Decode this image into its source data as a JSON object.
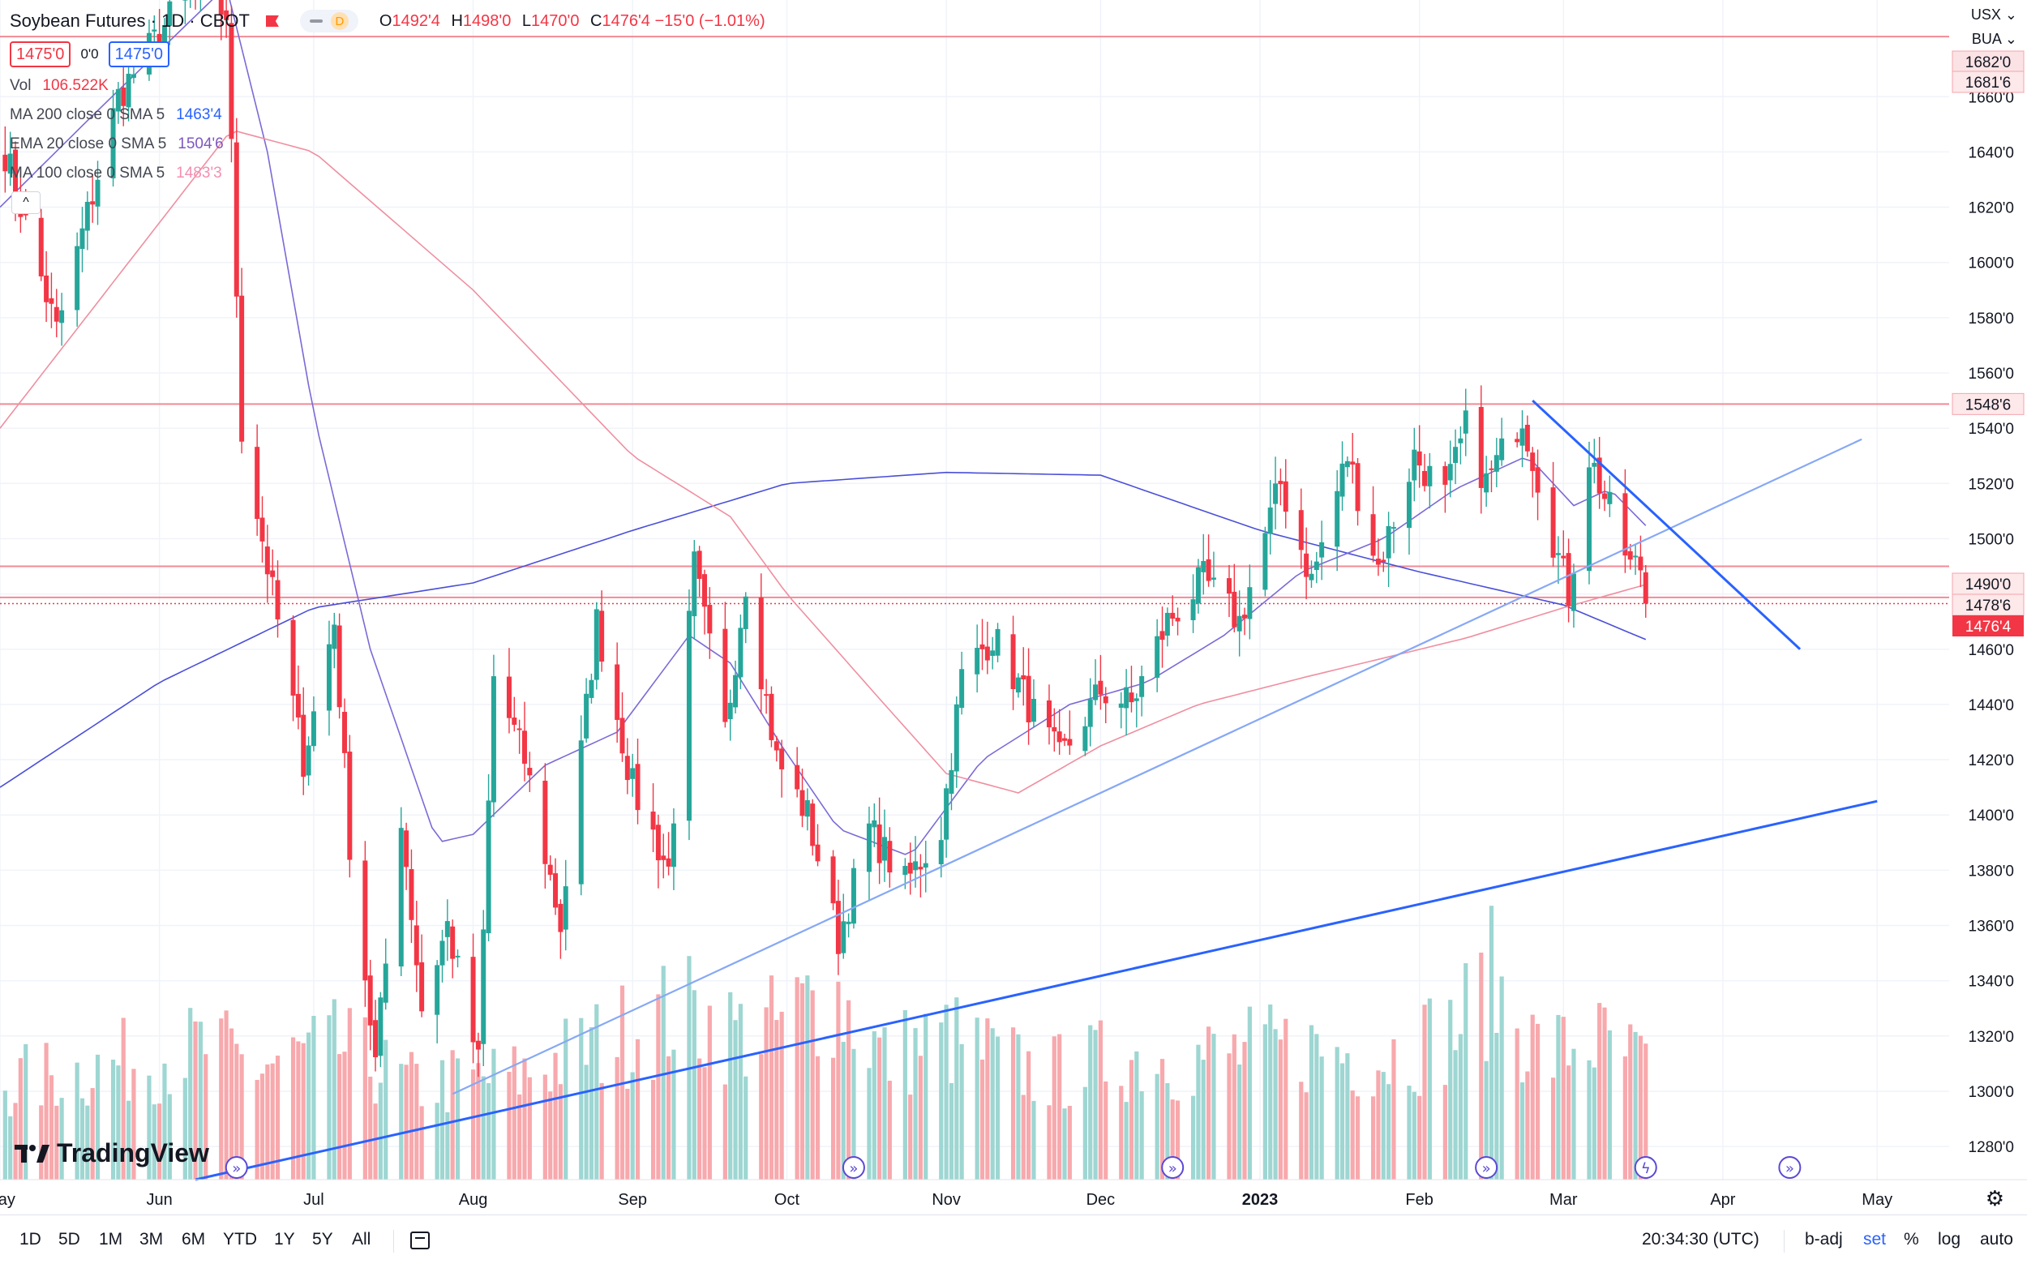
{
  "header": {
    "symbol": "Soybean Futures · 1D · CBOT",
    "pill_label": "D",
    "ohlc": [
      {
        "k": "O",
        "v": "1492'4"
      },
      {
        "k": "H",
        "v": "1498'0"
      },
      {
        "k": "L",
        "v": "1470'0"
      },
      {
        "k": "C",
        "v": "1476'4 −15'0 (−1.01%)"
      }
    ],
    "sell_price": "1475'0",
    "spread": "0'0",
    "buy_price": "1475'0",
    "currency": "USX",
    "unit": "BUA"
  },
  "legend": [
    {
      "name": "Vol",
      "value": "106.522K",
      "color": "#f23645"
    },
    {
      "name": "MA 200 close 0 SMA 5",
      "value": "1463'4",
      "color": "#2962ff"
    },
    {
      "name": "EMA 20 close 0 SMA 5",
      "value": "1504'6",
      "color": "#7e57c2"
    },
    {
      "name": "MA 100 close 0 SMA 5",
      "value": "1483'3",
      "color": "#f48fb1"
    }
  ],
  "collapse_glyph": "^",
  "logo": "TradingView",
  "colors": {
    "up": "#26a69a",
    "down": "#f23645",
    "vol_up": "#9ed6d2",
    "vol_down": "#f7a9ad",
    "ma200": "#4a4fd8",
    "ema20": "#7b6ad6",
    "ma100": "#ef8fa0",
    "hline": "#f28b95",
    "trend_light": "#86a8f5",
    "trend_dark": "#2962ff",
    "price_label": "#f23645"
  },
  "bottom_bar": {
    "timeframes": [
      "1D",
      "5D",
      "1M",
      "3M",
      "6M",
      "YTD",
      "1Y",
      "5Y",
      "All"
    ],
    "clock": "20:34:30 (UTC)",
    "toggles": [
      "b-adj",
      "set",
      "%",
      "log",
      "auto"
    ],
    "active_toggle": "set"
  },
  "chart_data": {
    "type": "candlestick",
    "title": "Soybean Futures · 1D · CBOT",
    "y_axis": {
      "ticks": [
        1280,
        1300,
        1320,
        1340,
        1360,
        1380,
        1400,
        1420,
        1440,
        1460,
        1480,
        1500,
        1520,
        1540,
        1560,
        1580,
        1600,
        1620,
        1640,
        1660
      ],
      "tick_labels": [
        "1280'0",
        "1300'0",
        "1320'0",
        "1340'0",
        "1360'0",
        "1380'0",
        "1400'0",
        "1420'0",
        "1440'0",
        "1460'0",
        "1480'0",
        "1500'0",
        "1520'0",
        "1540'0",
        "1560'0",
        "1580'0",
        "1600'0",
        "1620'0",
        "1640'0",
        "1660'0"
      ],
      "range": [
        1268,
        1695
      ],
      "side": "right"
    },
    "x_axis": {
      "labels": [
        "May",
        "Jun",
        "Jul",
        "Aug",
        "Sep",
        "Oct",
        "Nov",
        "Dec",
        "2023",
        "Feb",
        "Mar",
        "Apr",
        "May"
      ],
      "label_dates": [
        "2022-05-01",
        "2022-06-01",
        "2022-07-01",
        "2022-08-01",
        "2022-09-01",
        "2022-10-01",
        "2022-11-01",
        "2022-12-01",
        "2023-01-01",
        "2023-02-01",
        "2023-03-01",
        "2023-04-01",
        "2023-05-01"
      ],
      "range": [
        "2022-05-01",
        "2023-05-15"
      ]
    },
    "price_labels": [
      {
        "value": 1682,
        "text": "1682'0",
        "style": "faint"
      },
      {
        "value": 1681.75,
        "text": "1681'6",
        "style": "line"
      },
      {
        "value": 1548.75,
        "text": "1548'6",
        "style": "line"
      },
      {
        "value": 1490,
        "text": "1490'0",
        "style": "line"
      },
      {
        "value": 1478.75,
        "text": "1478'6",
        "style": "line"
      },
      {
        "value": 1476.5,
        "text": "1476'4",
        "style": "last"
      }
    ],
    "horizontal_lines": [
      1681.75,
      1548.75,
      1490,
      1478.75
    ],
    "last_price": 1476.5,
    "price_series_keypoints": [
      [
        "2022-05-02",
        1640
      ],
      [
        "2022-05-12",
        1575
      ],
      [
        "2022-05-24",
        1660
      ],
      [
        "2022-06-07",
        1700
      ],
      [
        "2022-06-14",
        1690
      ],
      [
        "2022-06-17",
        1540
      ],
      [
        "2022-06-22",
        1490
      ],
      [
        "2022-06-29",
        1420
      ],
      [
        "2022-07-05",
        1470
      ],
      [
        "2022-07-08",
        1390
      ],
      [
        "2022-07-13",
        1310
      ],
      [
        "2022-07-18",
        1400
      ],
      [
        "2022-07-22",
        1330
      ],
      [
        "2022-07-27",
        1360
      ],
      [
        "2022-08-02",
        1310
      ],
      [
        "2022-08-05",
        1450
      ],
      [
        "2022-08-11",
        1420
      ],
      [
        "2022-08-18",
        1360
      ],
      [
        "2022-08-25",
        1470
      ],
      [
        "2022-09-01",
        1410
      ],
      [
        "2022-09-08",
        1380
      ],
      [
        "2022-09-13",
        1490
      ],
      [
        "2022-09-19",
        1430
      ],
      [
        "2022-09-23",
        1485
      ],
      [
        "2022-09-29",
        1420
      ],
      [
        "2022-10-05",
        1400
      ],
      [
        "2022-10-11",
        1355
      ],
      [
        "2022-10-17",
        1395
      ],
      [
        "2022-10-24",
        1375
      ],
      [
        "2022-10-31",
        1395
      ],
      [
        "2022-11-04",
        1450
      ],
      [
        "2022-11-10",
        1465
      ],
      [
        "2022-11-17",
        1440
      ],
      [
        "2022-11-23",
        1420
      ],
      [
        "2022-12-01",
        1445
      ],
      [
        "2022-12-07",
        1440
      ],
      [
        "2022-12-14",
        1470
      ],
      [
        "2022-12-21",
        1485
      ],
      [
        "2022-12-28",
        1470
      ],
      [
        "2023-01-05",
        1520
      ],
      [
        "2023-01-11",
        1485
      ],
      [
        "2023-01-18",
        1530
      ],
      [
        "2023-01-24",
        1490
      ],
      [
        "2023-01-31",
        1530
      ],
      [
        "2023-02-06",
        1515
      ],
      [
        "2023-02-10",
        1540
      ],
      [
        "2023-02-14",
        1520
      ],
      [
        "2023-02-21",
        1545
      ],
      [
        "2023-02-27",
        1500
      ],
      [
        "2023-03-02",
        1480
      ],
      [
        "2023-03-06",
        1530
      ],
      [
        "2023-03-10",
        1510
      ],
      [
        "2023-03-14",
        1490
      ],
      [
        "2023-03-16",
        1490
      ],
      [
        "2023-03-17",
        1476.5
      ]
    ],
    "series": [
      {
        "name": "MA 200 close 0 SMA 5",
        "points": [
          [
            "2022-05-01",
            1410
          ],
          [
            "2022-06-01",
            1448
          ],
          [
            "2022-07-01",
            1475
          ],
          [
            "2022-08-01",
            1484
          ],
          [
            "2022-09-01",
            1503
          ],
          [
            "2022-10-01",
            1520
          ],
          [
            "2022-11-01",
            1524
          ],
          [
            "2022-12-01",
            1523
          ],
          [
            "2023-01-01",
            1503
          ],
          [
            "2023-02-01",
            1488
          ],
          [
            "2023-03-01",
            1476
          ],
          [
            "2023-03-17",
            1463.5
          ]
        ]
      },
      {
        "name": "EMA 20 close 0 SMA 5",
        "points": [
          [
            "2022-05-01",
            1620
          ],
          [
            "2022-05-20",
            1655
          ],
          [
            "2022-06-14",
            1700
          ],
          [
            "2022-06-22",
            1640
          ],
          [
            "2022-07-01",
            1545
          ],
          [
            "2022-07-12",
            1460
          ],
          [
            "2022-07-25",
            1390
          ],
          [
            "2022-08-01",
            1393
          ],
          [
            "2022-08-15",
            1418
          ],
          [
            "2022-08-29",
            1430
          ],
          [
            "2022-09-12",
            1465
          ],
          [
            "2022-09-20",
            1455
          ],
          [
            "2022-09-30",
            1425
          ],
          [
            "2022-10-11",
            1395
          ],
          [
            "2022-10-25",
            1385
          ],
          [
            "2022-11-08",
            1420
          ],
          [
            "2022-11-25",
            1440
          ],
          [
            "2022-12-10",
            1448
          ],
          [
            "2022-12-25",
            1465
          ],
          [
            "2023-01-09",
            1488
          ],
          [
            "2023-01-25",
            1500
          ],
          [
            "2023-02-08",
            1518
          ],
          [
            "2023-02-22",
            1530
          ],
          [
            "2023-03-03",
            1512
          ],
          [
            "2023-03-10",
            1518
          ],
          [
            "2023-03-17",
            1504.75
          ]
        ]
      },
      {
        "name": "MA 100 close 0 SMA 5",
        "points": [
          [
            "2022-05-01",
            1540
          ],
          [
            "2022-06-15",
            1648
          ],
          [
            "2022-07-01",
            1640
          ],
          [
            "2022-08-01",
            1590
          ],
          [
            "2022-09-01",
            1530
          ],
          [
            "2022-09-20",
            1508
          ],
          [
            "2022-10-01",
            1480
          ],
          [
            "2022-10-20",
            1440
          ],
          [
            "2022-11-01",
            1415
          ],
          [
            "2022-11-15",
            1408
          ],
          [
            "2022-12-01",
            1425
          ],
          [
            "2022-12-20",
            1440
          ],
          [
            "2023-01-10",
            1450
          ],
          [
            "2023-02-10",
            1464
          ],
          [
            "2023-03-01",
            1475
          ],
          [
            "2023-03-17",
            1483.4
          ]
        ]
      }
    ],
    "trendlines": [
      {
        "name": "rising-support-light",
        "from": [
          "2022-07-28",
          1299
        ],
        "to": [
          "2023-04-28",
          1536
        ]
      },
      {
        "name": "rising-support-dark",
        "from": [
          "2022-06-08",
          1268
        ],
        "to": [
          "2023-05-01",
          1405
        ]
      },
      {
        "name": "falling-resistance",
        "from": [
          "2023-02-23",
          1550
        ],
        "to": [
          "2023-04-16",
          1460
        ]
      }
    ],
    "volume_scale_max": 1200,
    "volume_keypoints": [
      [
        "2022-05-01",
        500
      ],
      [
        "2022-06-10",
        700
      ],
      [
        "2022-06-20",
        600
      ],
      [
        "2022-07-06",
        700
      ],
      [
        "2022-07-20",
        500
      ],
      [
        "2022-08-10",
        550
      ],
      [
        "2022-09-10",
        900
      ],
      [
        "2022-09-25",
        750
      ],
      [
        "2022-10-10",
        1000
      ],
      [
        "2022-10-20",
        650
      ],
      [
        "2022-11-01",
        750
      ],
      [
        "2022-11-20",
        550
      ],
      [
        "2022-12-05",
        650
      ],
      [
        "2022-12-20",
        650
      ],
      [
        "2023-01-10",
        700
      ],
      [
        "2023-01-25",
        650
      ],
      [
        "2023-02-08",
        800
      ],
      [
        "2023-02-15",
        1050
      ],
      [
        "2023-02-25",
        650
      ],
      [
        "2023-03-06",
        750
      ],
      [
        "2023-03-17",
        600
      ]
    ],
    "event_markers": [
      {
        "date": "2022-06-16",
        "glyph": "»"
      },
      {
        "date": "2022-10-14",
        "glyph": "»"
      },
      {
        "date": "2022-12-15",
        "glyph": "»"
      },
      {
        "date": "2023-02-14",
        "glyph": "»"
      },
      {
        "date": "2023-03-17",
        "glyph": "ϟ"
      },
      {
        "date": "2023-04-14",
        "glyph": "»"
      }
    ]
  }
}
